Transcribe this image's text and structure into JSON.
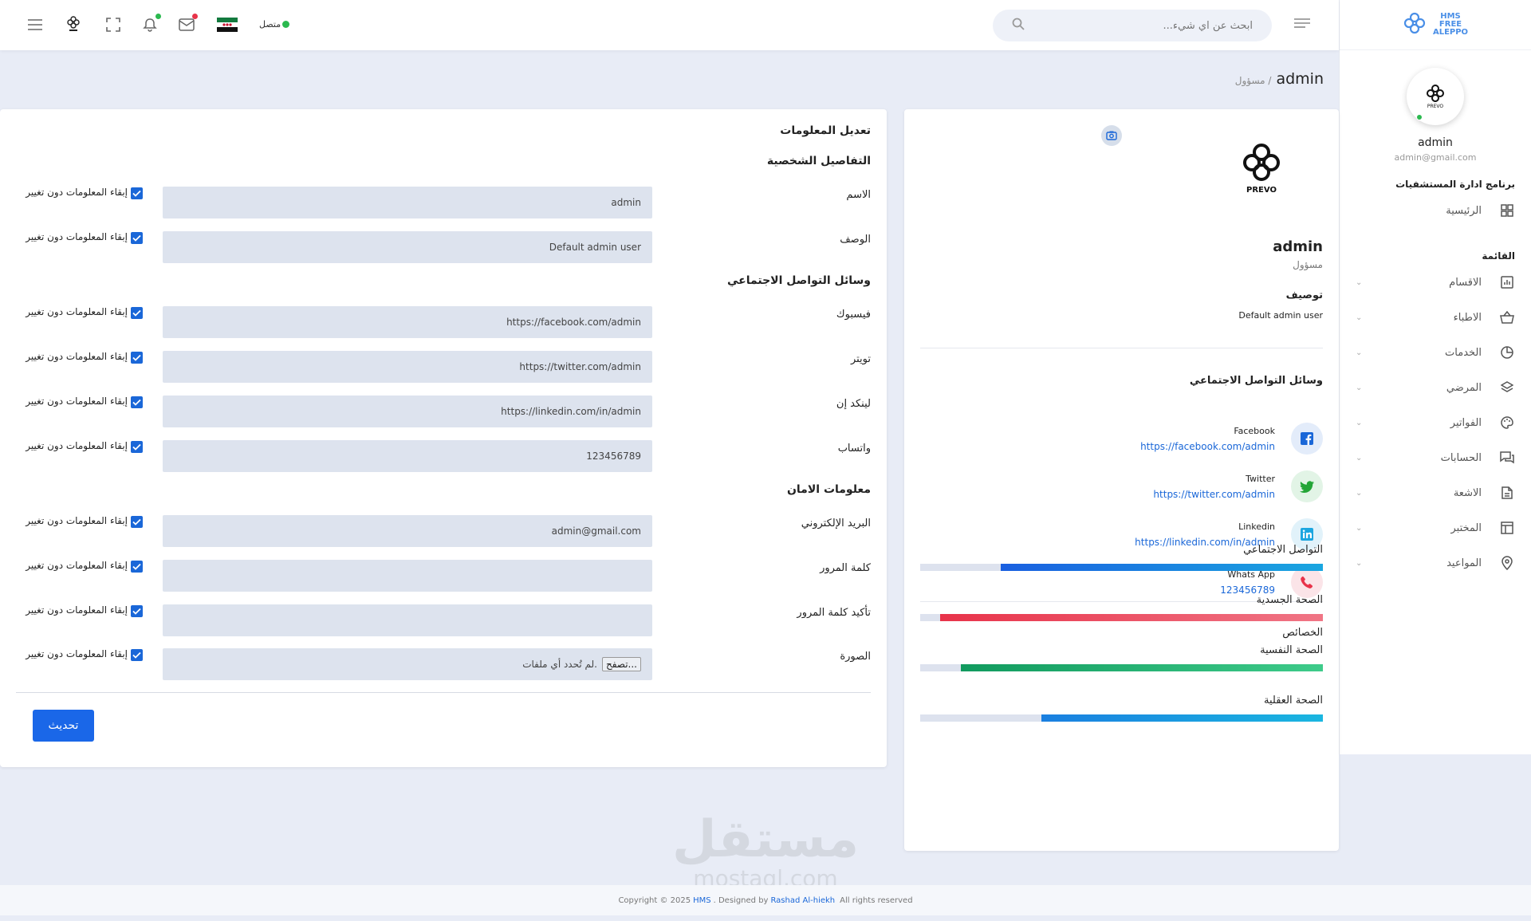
{
  "sidebar": {
    "brand": {
      "line1": "HMS",
      "line2": "FREE",
      "line3": "ALEPPO"
    },
    "user": {
      "name": "admin",
      "email": "admin@gmail.com"
    },
    "app_title": "برنامج ادارة المستشفيات",
    "home_label": "الرئيسية",
    "menu_title": "القائمة",
    "items": [
      {
        "label": "الاقسام",
        "icon": "chart-icon"
      },
      {
        "label": "الاطباء",
        "icon": "basket-icon"
      },
      {
        "label": "الخدمات",
        "icon": "pie-icon"
      },
      {
        "label": "المرضي",
        "icon": "layers-icon"
      },
      {
        "label": "الفواتير",
        "icon": "palette-icon"
      },
      {
        "label": "الحسابات",
        "icon": "chat-icon"
      },
      {
        "label": "الاشعة",
        "icon": "document-icon"
      },
      {
        "label": "المختبر",
        "icon": "table-icon"
      },
      {
        "label": "المواعيد",
        "icon": "pin-icon"
      }
    ]
  },
  "header": {
    "search_placeholder": "ابحث عن اي شيء...",
    "status_label": "متصل",
    "colors": {
      "mail_badge": "#e8334a",
      "bell_badge": "#2bb94f"
    }
  },
  "breadcrumb": {
    "current": "admin",
    "parent": "/ مسؤول"
  },
  "profile": {
    "name": "admin",
    "role": "مسؤول",
    "description_label": "توصيف",
    "description": "Default admin user",
    "social_title": "وسائل التواصل الاجتماعي",
    "social": [
      {
        "name": "Facebook",
        "value": "https://facebook.com/admin",
        "icon": "facebook-icon",
        "color": "#1a67d8",
        "bg": "#e3ecfa"
      },
      {
        "name": "Twitter",
        "value": "https://twitter.com/admin",
        "icon": "twitter-icon",
        "color": "#23a537",
        "bg": "#e2f4e6"
      },
      {
        "name": "Linkedin",
        "value": "https://linkedin.com/in/admin",
        "icon": "linkedin-icon",
        "color": "#1ca6e0",
        "bg": "#e1f2fa"
      },
      {
        "name": "Whats App",
        "value": "123456789",
        "icon": "phone-icon",
        "color": "#e8334a",
        "bg": "#fbe4e8"
      }
    ],
    "props_title": "الخصائص",
    "props": [
      {
        "label": "التواصل الاجتماعي",
        "value": 0.8,
        "color_a": "#1a5fe0",
        "color_b": "#1aa6e0"
      },
      {
        "label": "الصحة الجسدية",
        "value": 0.95,
        "color_a": "#e8334a",
        "color_b": "#f07585"
      },
      {
        "label": "الصحة النفسية",
        "value": 0.9,
        "color_a": "#119a5e",
        "color_b": "#3ecb8a"
      },
      {
        "label": "الصحة العقلية",
        "value": 0.7,
        "color_a": "#1a7fe0",
        "color_b": "#1ab6e0"
      }
    ]
  },
  "edit": {
    "title": "تعديل المعلومات",
    "personal_title": "التفاصيل الشخصية",
    "social_title": "وسائل التواصل الاجتماعي",
    "security_title": "معلومات الامان",
    "keep_label": "إبقاء المعلومات دون تغيير",
    "fields": {
      "name": {
        "label": "الاسم",
        "value": "admin"
      },
      "description": {
        "label": "الوصف",
        "value": "Default admin user"
      },
      "facebook": {
        "label": "فيسبوك",
        "value": "https://facebook.com/admin"
      },
      "twitter": {
        "label": "تويتر",
        "value": "https://twitter.com/admin"
      },
      "linkedin": {
        "label": "لينكد إن",
        "value": "https://linkedin.com/in/admin"
      },
      "whatsapp": {
        "label": "واتساب",
        "value": "123456789"
      },
      "email": {
        "label": "البريد الإلكتروني",
        "value": "admin@gmail.com"
      },
      "password": {
        "label": "كلمة المرور",
        "value": ""
      },
      "password_confirm": {
        "label": "تأكيد كلمة المرور",
        "value": ""
      },
      "image": {
        "label": "الصورة",
        "browse": "تصفح...",
        "no_file": "لم تُحدد أي ملفات."
      }
    },
    "update_label": "تحديث"
  },
  "footer": {
    "prefix": "Copyright © 2025",
    "hms": "HMS",
    "designed": ". Designed by",
    "author": "Rashad Al-hiekh",
    "rights": "All rights reserved"
  },
  "watermark": {
    "arabic": "مستقل",
    "latin": "mostaql.com"
  }
}
